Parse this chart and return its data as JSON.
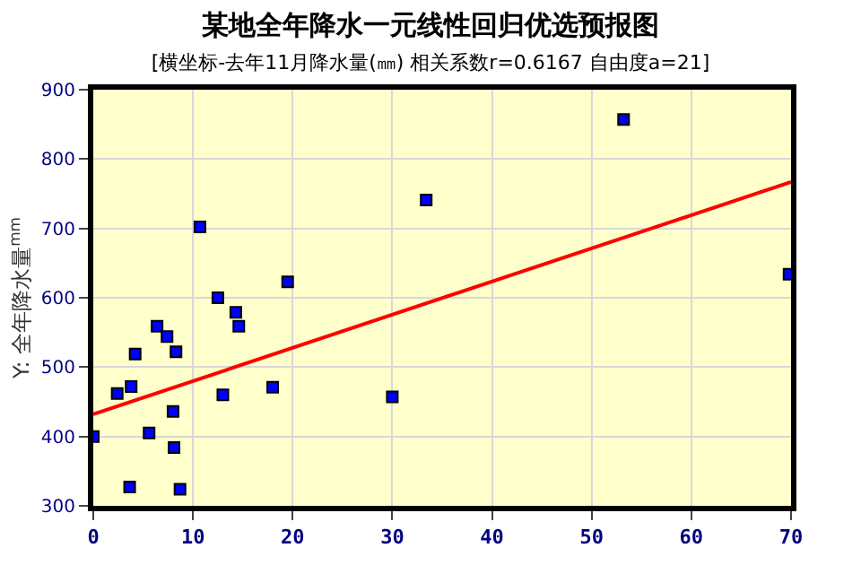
{
  "chart_data": {
    "type": "scatter",
    "title": "某地全年降水一元线性回归优选预报图",
    "subtitle": "[横坐标-去年11月降水量(㎜) 相关系数r=0.6167 自由度a=21]",
    "ylabel": "Y: 全年降水量$^{mm}$",
    "series": [
      {
        "color": "#0000ff",
        "marker": "square",
        "x": [
          0,
          2.4,
          3.8,
          4.2,
          3.65,
          5.6,
          6.4,
          7.4,
          8.3,
          8.0,
          8.1,
          8.7,
          10.7,
          12.5,
          13.0,
          14.3,
          14.6,
          18.0,
          19.5,
          30.0,
          33.4,
          53.2,
          69.8
        ],
        "values": [
          400,
          462,
          472,
          519,
          327,
          405,
          559,
          544,
          522,
          436,
          384,
          324,
          702,
          600,
          460,
          579,
          559,
          471,
          623,
          457,
          741,
          857,
          634
        ]
      },
      {
        "type": "line",
        "color": "#ff0000",
        "x": [
          0,
          70
        ],
        "values": [
          432,
          767
        ]
      }
    ],
    "xlim": [
      0,
      70
    ],
    "xticks": [
      0,
      10,
      20,
      30,
      40,
      50,
      60,
      70
    ],
    "ylim": [
      300,
      900
    ],
    "yticks": [
      300,
      400,
      500,
      600,
      700,
      800,
      900
    ],
    "grid": true,
    "legend": false
  }
}
